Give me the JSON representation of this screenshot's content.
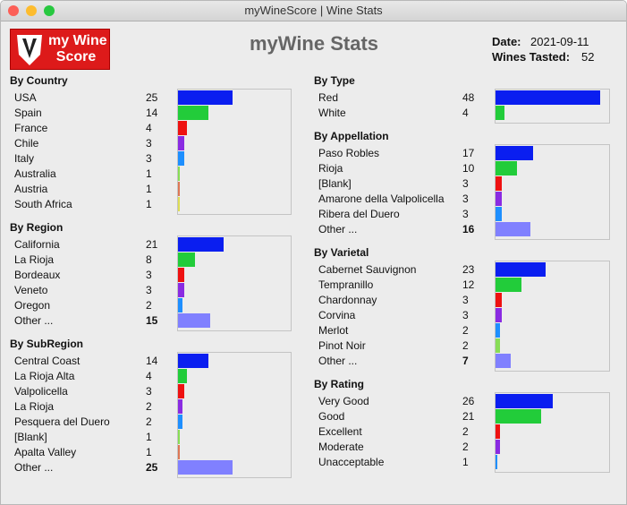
{
  "window": {
    "title": "myWineScore | Wine Stats"
  },
  "logo": {
    "lines": [
      "my Wine",
      "Score"
    ]
  },
  "header": {
    "title": "myWine Stats",
    "date_label": "Date:",
    "date": "2021-09-11",
    "tasted_label": "Wines Tasted:",
    "tasted": 52
  },
  "columns": [
    [
      {
        "title": "By Country",
        "rows": [
          {
            "label": "USA",
            "value": 25,
            "color": "#0a1ef0"
          },
          {
            "label": "Spain",
            "value": 14,
            "color": "#22cc3a"
          },
          {
            "label": "France",
            "value": 4,
            "color": "#ee1111"
          },
          {
            "label": "Chile",
            "value": 3,
            "color": "#8a2be2"
          },
          {
            "label": "Italy",
            "value": 3,
            "color": "#1e8fff"
          },
          {
            "label": "Australia",
            "value": 1,
            "color": "#88dd55"
          },
          {
            "label": "Austria",
            "value": 1,
            "color": "#dd7755"
          },
          {
            "label": "South Africa",
            "value": 1,
            "color": "#dddd55"
          }
        ]
      },
      {
        "title": "By Region",
        "rows": [
          {
            "label": "California",
            "value": 21,
            "color": "#0a1ef0"
          },
          {
            "label": "La Rioja",
            "value": 8,
            "color": "#22cc3a"
          },
          {
            "label": "Bordeaux",
            "value": 3,
            "color": "#ee1111"
          },
          {
            "label": "Veneto",
            "value": 3,
            "color": "#8a2be2"
          },
          {
            "label": "Oregon",
            "value": 2,
            "color": "#1e8fff"
          },
          {
            "label": "Other ...",
            "value": 15,
            "color": "#8080ff",
            "bold": true
          }
        ]
      },
      {
        "title": "By SubRegion",
        "rows": [
          {
            "label": "Central Coast",
            "value": 14,
            "color": "#0a1ef0"
          },
          {
            "label": "La Rioja Alta",
            "value": 4,
            "color": "#22cc3a"
          },
          {
            "label": "Valpolicella",
            "value": 3,
            "color": "#ee1111"
          },
          {
            "label": "La Rioja",
            "value": 2,
            "color": "#8a2be2"
          },
          {
            "label": "Pesquera del Duero",
            "value": 2,
            "color": "#1e8fff"
          },
          {
            "label": "[Blank]",
            "value": 1,
            "color": "#88dd55"
          },
          {
            "label": "Apalta Valley",
            "value": 1,
            "color": "#dd7755"
          },
          {
            "label": "Other ...",
            "value": 25,
            "color": "#8080ff",
            "bold": true
          }
        ]
      }
    ],
    [
      {
        "title": "By Type",
        "rows": [
          {
            "label": "Red",
            "value": 48,
            "color": "#0a1ef0"
          },
          {
            "label": "White",
            "value": 4,
            "color": "#22cc3a"
          }
        ]
      },
      {
        "title": "By Appellation",
        "rows": [
          {
            "label": "Paso Robles",
            "value": 17,
            "color": "#0a1ef0"
          },
          {
            "label": "Rioja",
            "value": 10,
            "color": "#22cc3a"
          },
          {
            "label": "[Blank]",
            "value": 3,
            "color": "#ee1111"
          },
          {
            "label": "Amarone della Valpolicella",
            "value": 3,
            "color": "#8a2be2"
          },
          {
            "label": "Ribera del Duero",
            "value": 3,
            "color": "#1e8fff"
          },
          {
            "label": "Other ...",
            "value": 16,
            "color": "#8080ff",
            "bold": true
          }
        ]
      },
      {
        "title": "By Varietal",
        "rows": [
          {
            "label": "Cabernet Sauvignon",
            "value": 23,
            "color": "#0a1ef0"
          },
          {
            "label": "Tempranillo",
            "value": 12,
            "color": "#22cc3a"
          },
          {
            "label": "Chardonnay",
            "value": 3,
            "color": "#ee1111"
          },
          {
            "label": "Corvina",
            "value": 3,
            "color": "#8a2be2"
          },
          {
            "label": "Merlot",
            "value": 2,
            "color": "#1e8fff"
          },
          {
            "label": "Pinot Noir",
            "value": 2,
            "color": "#88dd55"
          },
          {
            "label": "Other ...",
            "value": 7,
            "color": "#8080ff",
            "bold": true
          }
        ]
      },
      {
        "title": "By Rating",
        "rows": [
          {
            "label": "Very Good",
            "value": 26,
            "color": "#0a1ef0"
          },
          {
            "label": "Good",
            "value": 21,
            "color": "#22cc3a"
          },
          {
            "label": "Excellent",
            "value": 2,
            "color": "#ee1111"
          },
          {
            "label": "Moderate",
            "value": 2,
            "color": "#8a2be2"
          },
          {
            "label": "Unacceptable",
            "value": 1,
            "color": "#1e8fff"
          }
        ]
      }
    ]
  ]
}
